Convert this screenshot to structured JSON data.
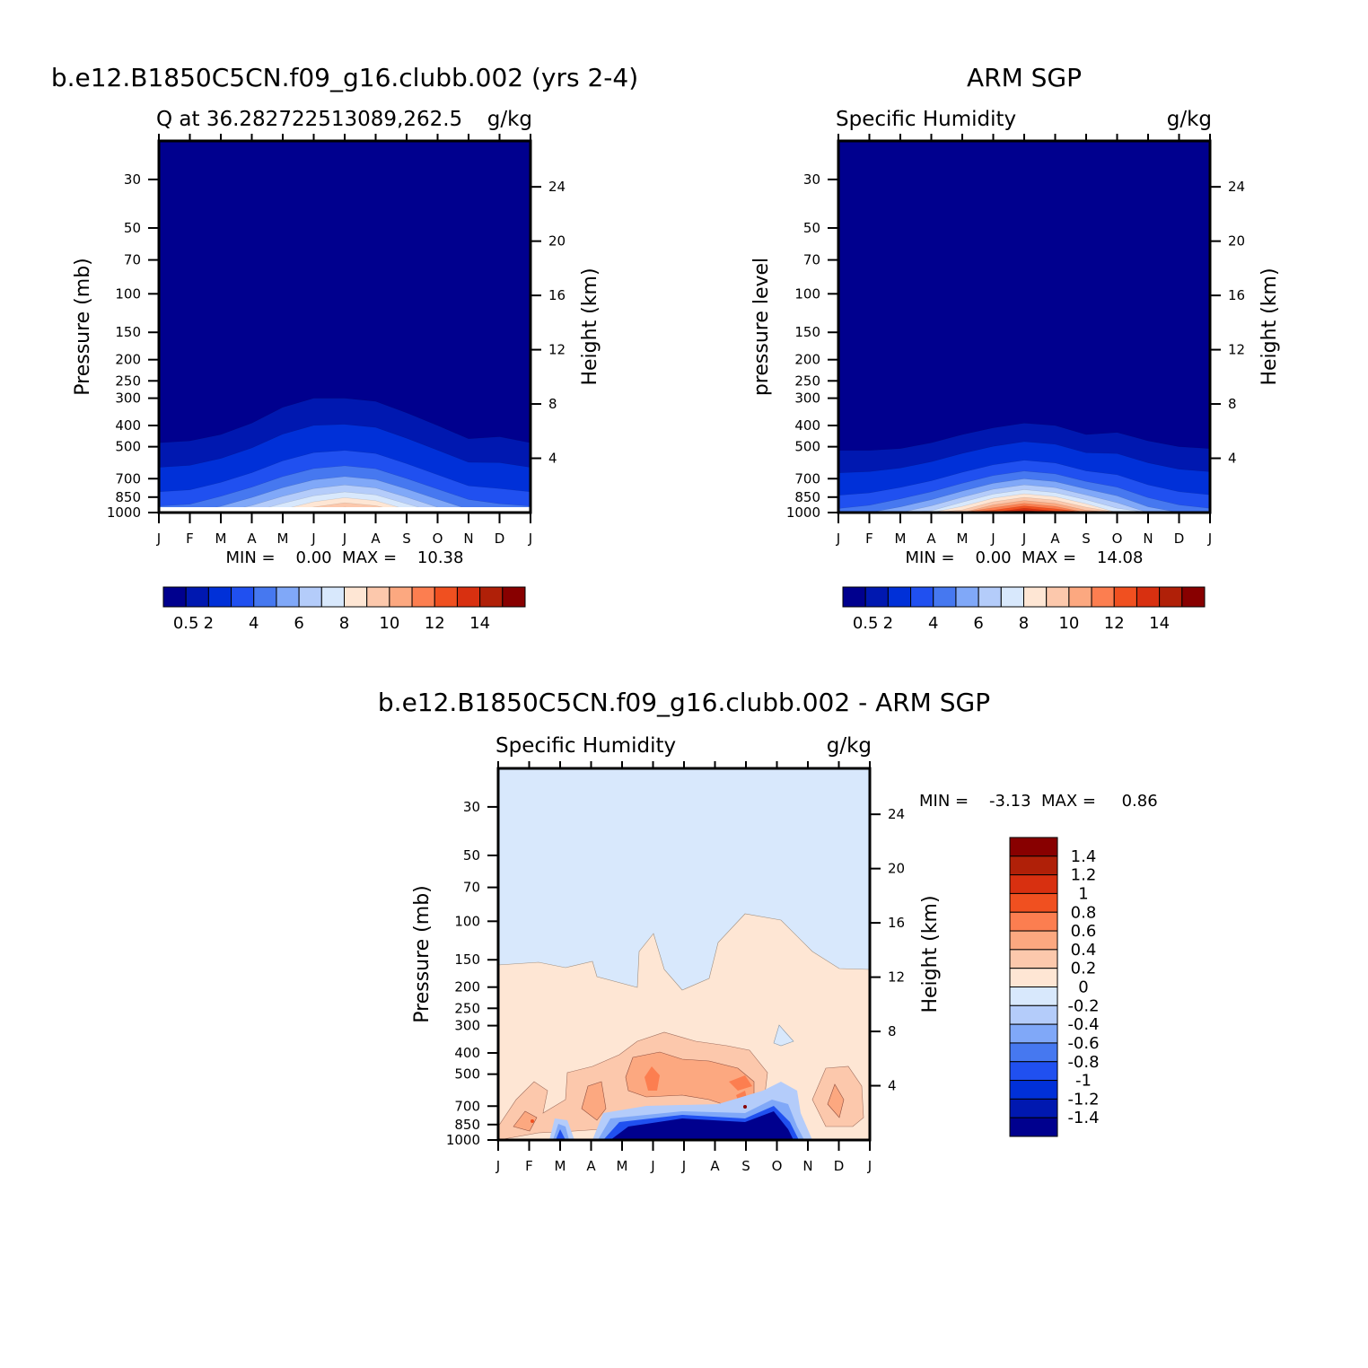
{
  "panels": [
    {
      "title": "b.e12.B1850C5CN.f09_g16.clubb.002 (yrs 2-4)",
      "left_label": "Q at 36.282722513089,262.5",
      "right_label": "g/kg",
      "y_label": "Pressure (mb)",
      "y2_label": "Height (km)",
      "minmax_text": "MIN =    0.00  MAX =    10.38"
    },
    {
      "title": "ARM SGP",
      "left_label": "Specific Humidity",
      "right_label": "g/kg",
      "y_label": "pressure level",
      "y2_label": "Height (km)",
      "minmax_text": "MIN =    0.00  MAX =    14.08"
    },
    {
      "title": "b.e12.B1850C5CN.f09_g16.clubb.002 - ARM SGP",
      "left_label": "Specific Humidity",
      "right_label": "g/kg",
      "y_label": "Pressure (mb)",
      "y2_label": "Height (km)",
      "minmax_text": "MIN =    -3.13  MAX =     0.86"
    }
  ],
  "chart_data": [
    {
      "type": "heatmap",
      "title": "b.e12.B1850C5CN.f09_g16.clubb.002 (yrs 2-4)",
      "variable": "Q at 36.282722513089,262.5",
      "units": "g/kg",
      "x_ticks": [
        "J",
        "F",
        "M",
        "A",
        "M",
        "J",
        "J",
        "A",
        "S",
        "O",
        "N",
        "D",
        "J"
      ],
      "y_ticks": [
        30,
        50,
        70,
        100,
        150,
        200,
        250,
        300,
        400,
        500,
        700,
        850,
        1000
      ],
      "y2_ticks": [
        24,
        20,
        16,
        12,
        8,
        4
      ],
      "ylabel": "Pressure (mb)",
      "y2label": "Height (km)",
      "min": 0.0,
      "max": 10.38,
      "colorbar_labels": [
        "0.5",
        "2",
        "4",
        "6",
        "8",
        "10",
        "12",
        "14"
      ],
      "colors": [
        "#00008e",
        "#0018b0",
        "#0030d8",
        "#2050f0",
        "#4678f0",
        "#80a8f8",
        "#b4ccfa",
        "#d8e8fc",
        "#fee6d4",
        "#fcc8ac",
        "#fca880",
        "#fc7e50",
        "#f05020",
        "#d83010",
        "#b02008",
        "#880000"
      ],
      "surface_q": [
        3.6,
        3.8,
        4.8,
        6.1,
        7.6,
        9.2,
        10.38,
        9.6,
        7.6,
        5.8,
        4.4,
        3.8,
        3.6
      ],
      "moist_top_p": [
        480,
        470,
        440,
        390,
        330,
        300,
        300,
        310,
        350,
        400,
        460,
        450,
        480
      ]
    },
    {
      "type": "heatmap",
      "title": "ARM SGP",
      "variable": "Specific Humidity",
      "units": "g/kg",
      "x_ticks": [
        "J",
        "F",
        "M",
        "A",
        "M",
        "J",
        "J",
        "A",
        "S",
        "O",
        "N",
        "D",
        "J"
      ],
      "y_ticks": [
        30,
        50,
        70,
        100,
        150,
        200,
        250,
        300,
        400,
        500,
        700,
        850,
        1000
      ],
      "y2_ticks": [
        24,
        20,
        16,
        12,
        8,
        4
      ],
      "ylabel": "pressure level",
      "y2label": "Height (km)",
      "min": 0.0,
      "max": 14.08,
      "colorbar_labels": [
        "0.5",
        "2",
        "4",
        "6",
        "8",
        "10",
        "12",
        "14"
      ],
      "colors": [
        "#00008e",
        "#0018b0",
        "#0030d8",
        "#2050f0",
        "#4678f0",
        "#80a8f8",
        "#b4ccfa",
        "#d8e8fc",
        "#fee6d4",
        "#fcc8ac",
        "#fca880",
        "#fc7e50",
        "#f05020",
        "#d83010",
        "#b02008",
        "#880000"
      ],
      "surface_q": [
        3.4,
        3.8,
        4.9,
        6.4,
        8.8,
        12.0,
        14.08,
        12.6,
        9.8,
        6.9,
        4.8,
        3.8,
        3.4
      ],
      "moist_top_p": [
        520,
        520,
        510,
        480,
        440,
        410,
        390,
        400,
        440,
        430,
        470,
        500,
        510
      ]
    },
    {
      "type": "heatmap",
      "title": "b.e12.B1850C5CN.f09_g16.clubb.002 - ARM SGP",
      "variable": "Specific Humidity",
      "units": "g/kg",
      "x_ticks": [
        "J",
        "F",
        "M",
        "A",
        "M",
        "J",
        "J",
        "A",
        "S",
        "O",
        "N",
        "D",
        "J"
      ],
      "y_ticks": [
        30,
        50,
        70,
        100,
        150,
        200,
        250,
        300,
        400,
        500,
        700,
        850,
        1000
      ],
      "y2_ticks": [
        24,
        20,
        16,
        12,
        8,
        4
      ],
      "ylabel": "Pressure (mb)",
      "y2label": "Height (km)",
      "min": -3.13,
      "max": 0.86,
      "colorbar_labels": [
        "1.4",
        "1.2",
        "1",
        "0.8",
        "0.6",
        "0.4",
        "0.2",
        "0",
        "-0.2",
        "-0.4",
        "-0.6",
        "-0.8",
        "-1",
        "-1.2",
        "-1.4"
      ],
      "colors": [
        "#880000",
        "#b02008",
        "#d83010",
        "#f05020",
        "#fc7e50",
        "#fca880",
        "#fcc8ac",
        "#fee6d4",
        "#d8e8fc",
        "#b4ccfa",
        "#80a8f8",
        "#4678f0",
        "#2050f0",
        "#0030d8",
        "#0018b0",
        "#00008e"
      ]
    }
  ]
}
